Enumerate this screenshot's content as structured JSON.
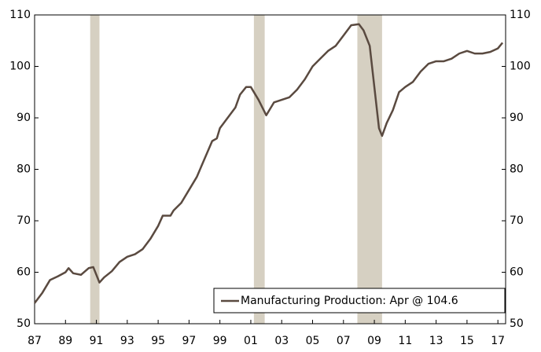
{
  "chart_data": {
    "type": "line",
    "x": [
      1987.0,
      1987.5,
      1988.0,
      1988.5,
      1989.0,
      1989.2,
      1989.5,
      1990.0,
      1990.5,
      1990.8,
      1991.2,
      1991.5,
      1992.0,
      1992.5,
      1993.0,
      1993.5,
      1994.0,
      1994.5,
      1995.0,
      1995.3,
      1995.8,
      1996.0,
      1996.5,
      1997.0,
      1997.5,
      1998.0,
      1998.5,
      1998.8,
      1999.0,
      1999.5,
      2000.0,
      2000.3,
      2000.7,
      2001.0,
      2001.5,
      2002.0,
      2002.5,
      2003.0,
      2003.5,
      2004.0,
      2004.5,
      2005.0,
      2005.5,
      2006.0,
      2006.5,
      2007.0,
      2007.5,
      2008.0,
      2008.3,
      2008.7,
      2009.0,
      2009.3,
      2009.5,
      2009.8,
      2010.2,
      2010.6,
      2011.0,
      2011.5,
      2012.0,
      2012.5,
      2013.0,
      2013.5,
      2014.0,
      2014.5,
      2015.0,
      2015.5,
      2016.0,
      2016.5,
      2017.0,
      2017.3
    ],
    "series": [
      {
        "name": "Manufacturing Production: Apr @ 104.6",
        "color": "#5a4a40",
        "values": [
          54,
          56,
          58.5,
          59.2,
          60,
          60.8,
          59.8,
          59.5,
          60.8,
          61,
          58,
          59,
          60.2,
          62,
          63,
          63.5,
          64.5,
          66.5,
          69,
          71,
          71,
          72,
          73.5,
          76,
          78.5,
          82,
          85.5,
          86,
          88,
          90,
          92,
          94.5,
          96,
          96,
          93.5,
          90.5,
          93,
          93.5,
          94,
          95.5,
          97.5,
          100,
          101.5,
          103,
          104,
          106,
          108,
          108.2,
          107,
          104,
          96,
          88,
          86.5,
          89,
          91.5,
          95,
          96,
          97,
          99,
          100.5,
          101,
          101,
          101.5,
          102.5,
          103,
          102.5,
          102.5,
          102.8,
          103.5,
          104.6
        ]
      }
    ],
    "shaded_periods": [
      [
        1990.6,
        1991.2
      ],
      [
        2001.2,
        2001.9
      ],
      [
        2007.9,
        2009.5
      ]
    ],
    "shade_color": "#d6d0c2",
    "xlim": [
      1987,
      2017.5
    ],
    "xticks": [
      {
        "value": 1987,
        "label": "87"
      },
      {
        "value": 1989,
        "label": "89"
      },
      {
        "value": 1991,
        "label": "91"
      },
      {
        "value": 1993,
        "label": "93"
      },
      {
        "value": 1995,
        "label": "95"
      },
      {
        "value": 1997,
        "label": "97"
      },
      {
        "value": 1999,
        "label": "99"
      },
      {
        "value": 2001,
        "label": "01"
      },
      {
        "value": 2003,
        "label": "03"
      },
      {
        "value": 2005,
        "label": "05"
      },
      {
        "value": 2007,
        "label": "07"
      },
      {
        "value": 2009,
        "label": "09"
      },
      {
        "value": 2011,
        "label": "11"
      },
      {
        "value": 2013,
        "label": "13"
      },
      {
        "value": 2015,
        "label": "15"
      },
      {
        "value": 2017,
        "label": "17"
      }
    ],
    "ylim": [
      50,
      110
    ],
    "yticks": [
      50,
      60,
      70,
      80,
      90,
      100,
      110
    ],
    "y2lim": [
      50,
      110
    ],
    "y2ticks": [
      50,
      60,
      70,
      80,
      90,
      100,
      110
    ],
    "legend": "lower right"
  }
}
